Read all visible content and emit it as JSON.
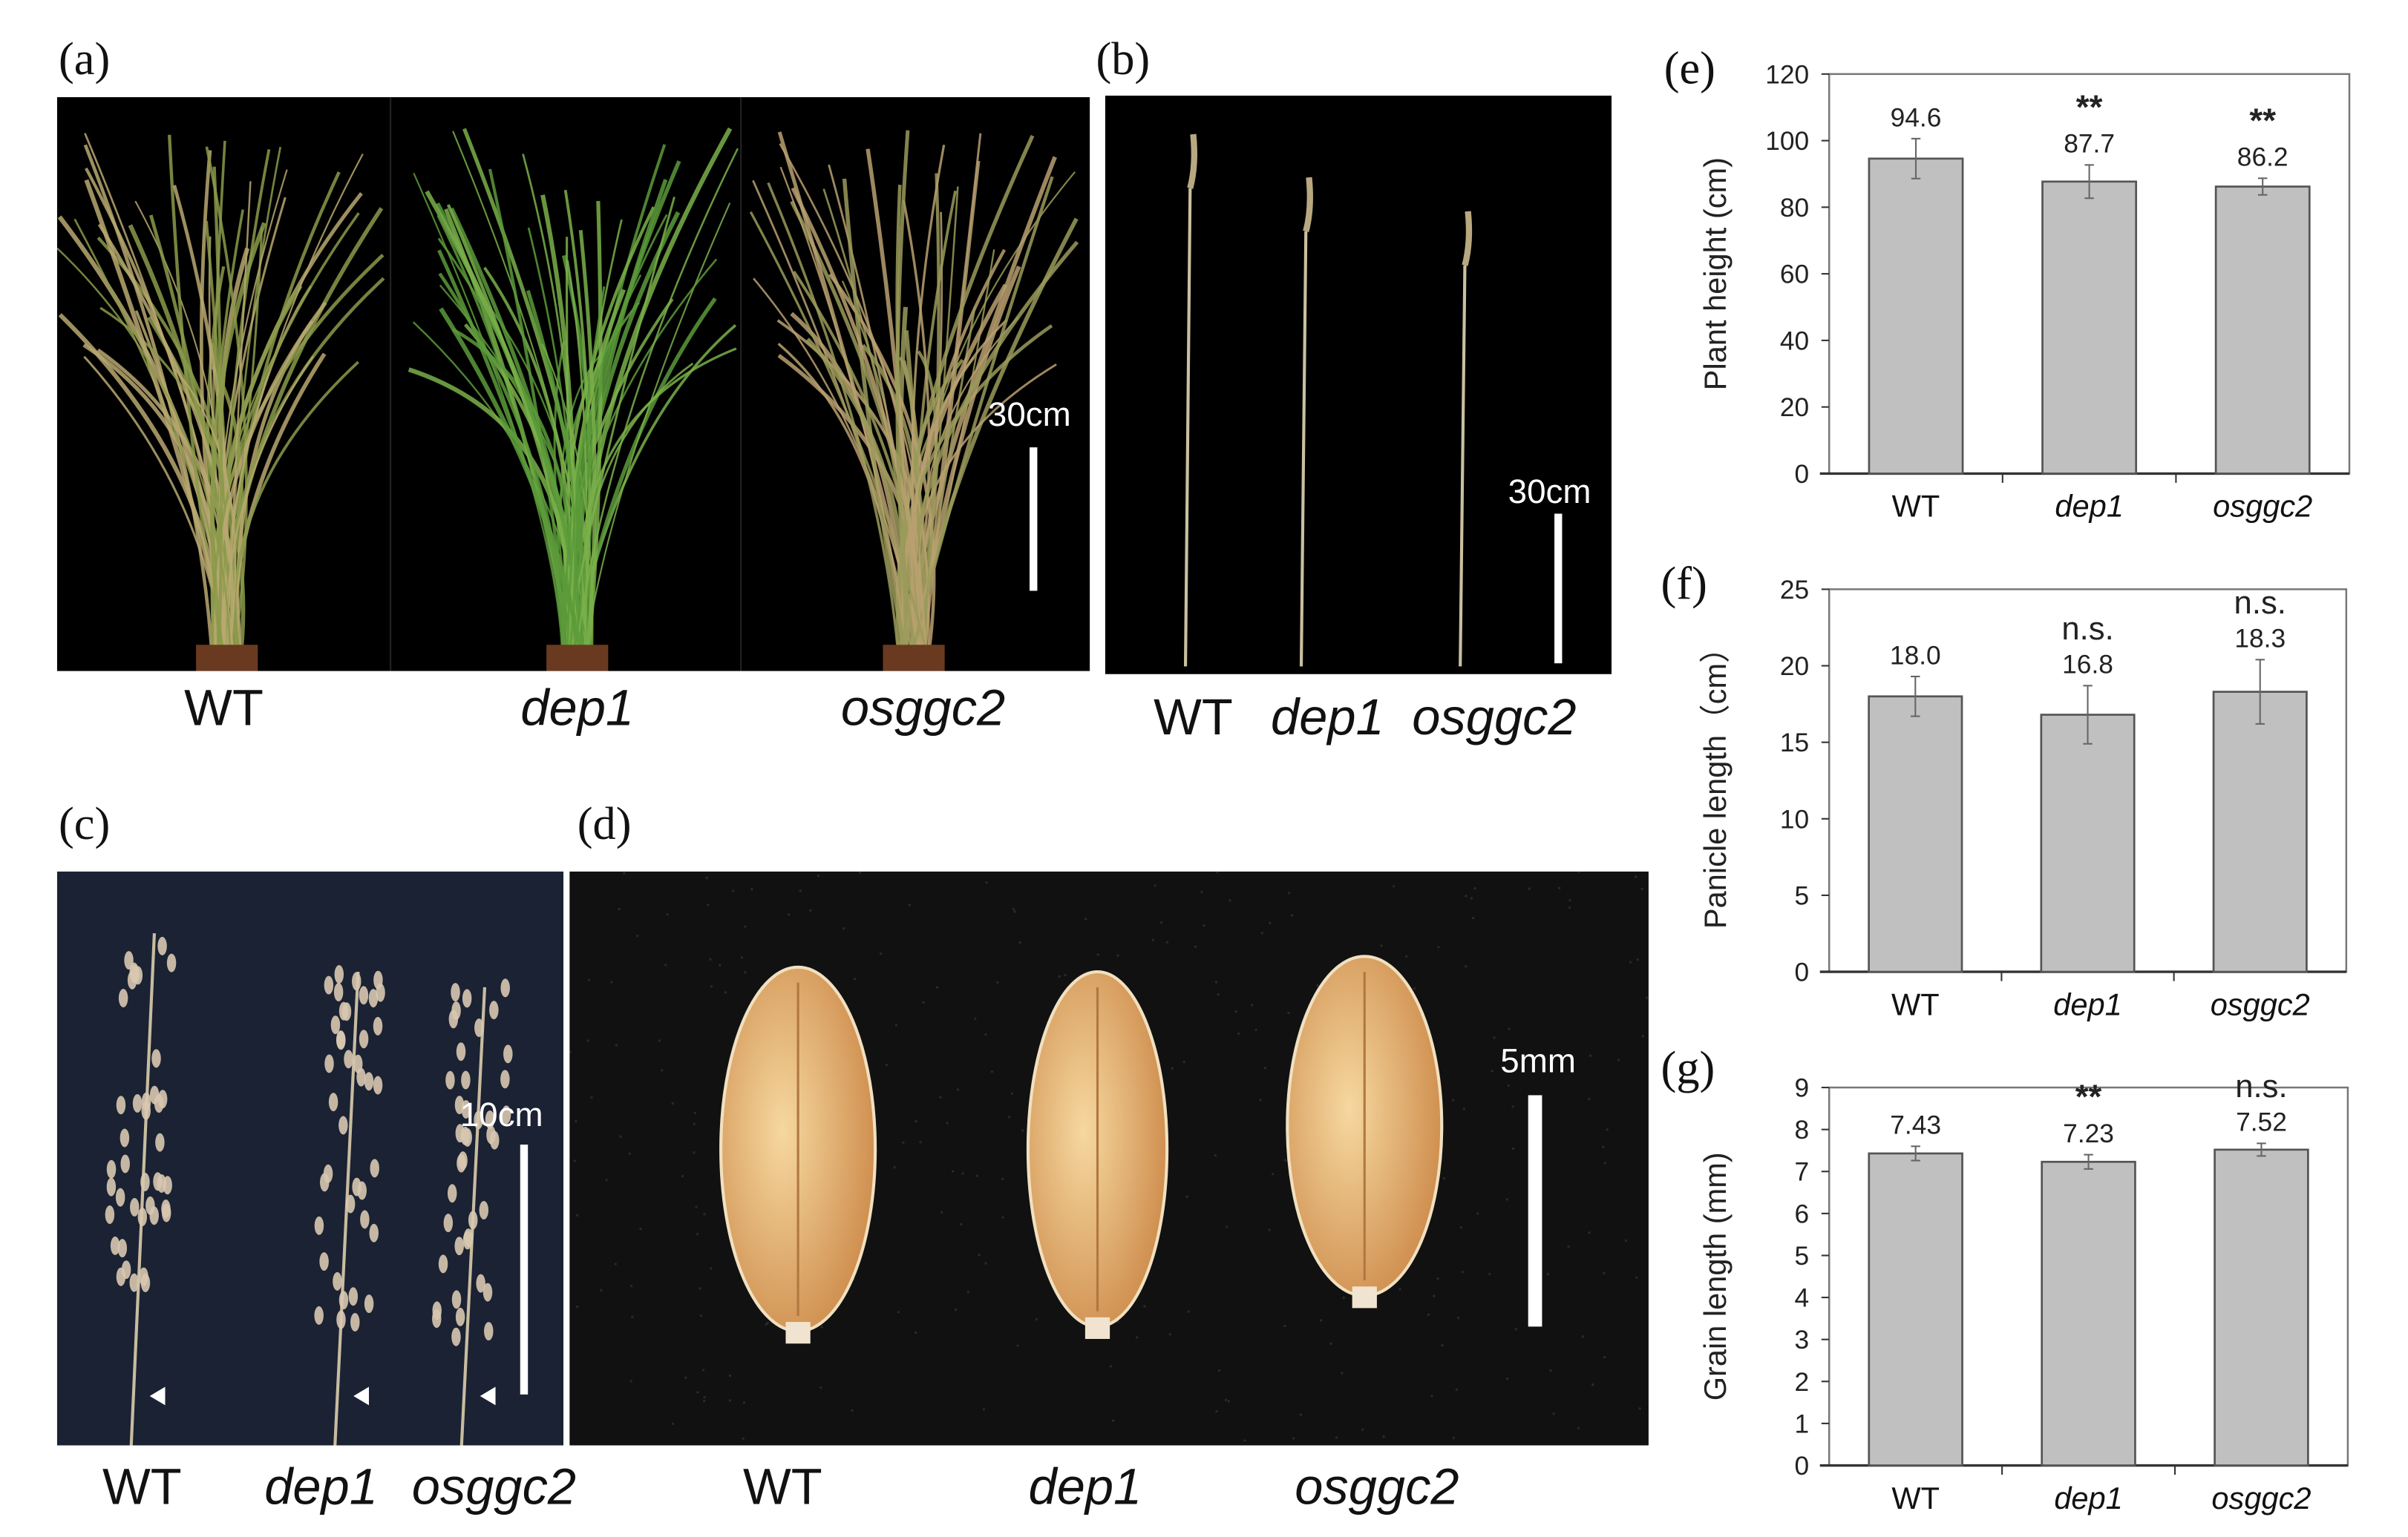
{
  "panels": {
    "a": {
      "label": "(a)",
      "captions": [
        "WT",
        "dep1",
        "osggc2"
      ],
      "scale": "30cm"
    },
    "b": {
      "label": "(b)",
      "captions": [
        "WT",
        "dep1",
        "osggc2"
      ],
      "scale": "30cm"
    },
    "c": {
      "label": "(c)",
      "captions": [
        "WT",
        "dep1",
        "osggc2"
      ],
      "scale": "10cm"
    },
    "d": {
      "label": "(d)",
      "captions": [
        "WT",
        "dep1",
        "osggc2"
      ],
      "scale": "5mm"
    }
  },
  "colors": {
    "bar_fill": "#c0c0c0",
    "bar_stroke": "#555555",
    "photo_bg": "#000000",
    "panicle_bg": "#1a2233",
    "grain_bg": "#111111",
    "grain": "#e8b878"
  },
  "chart_data": [
    {
      "panel_label": "(e)",
      "type": "bar",
      "categories": [
        "WT",
        "dep1",
        "osggc2"
      ],
      "values": [
        94.6,
        87.7,
        86.2
      ],
      "errors": [
        6,
        5,
        2.5
      ],
      "value_labels": [
        "94.6",
        "87.7",
        "86.2"
      ],
      "significance": [
        "",
        "**",
        "**"
      ],
      "ylabel": "Plant height  (cm)",
      "ylim": [
        0,
        120
      ],
      "yticks": [
        "0",
        "20",
        "40",
        "60",
        "80",
        "100",
        "120"
      ],
      "grid": false
    },
    {
      "panel_label": "(f)",
      "type": "bar",
      "categories": [
        "WT",
        "dep1",
        "osggc2"
      ],
      "values": [
        18.0,
        16.8,
        18.3
      ],
      "errors": [
        1.3,
        1.9,
        2.1
      ],
      "value_labels": [
        "18.0",
        "16.8",
        "18.3"
      ],
      "significance": [
        "",
        "n.s.",
        "n.s."
      ],
      "ylabel": "Panicle length（cm）",
      "ylim": [
        0,
        25
      ],
      "yticks": [
        "0",
        "5",
        "10",
        "15",
        "20",
        "25"
      ],
      "grid": false
    },
    {
      "panel_label": "(g)",
      "type": "bar",
      "categories": [
        "WT",
        "dep1",
        "osggc2"
      ],
      "values": [
        7.43,
        7.23,
        7.52
      ],
      "errors": [
        0.17,
        0.17,
        0.15
      ],
      "value_labels": [
        "7.43",
        "7.23",
        "7.52"
      ],
      "significance": [
        "",
        "**",
        "n.s."
      ],
      "ylabel": "Grain length (mm)",
      "ylim": [
        0,
        9
      ],
      "yticks": [
        "0",
        "1",
        "2",
        "3",
        "4",
        "5",
        "6",
        "7",
        "8",
        "9"
      ],
      "grid": false
    }
  ]
}
